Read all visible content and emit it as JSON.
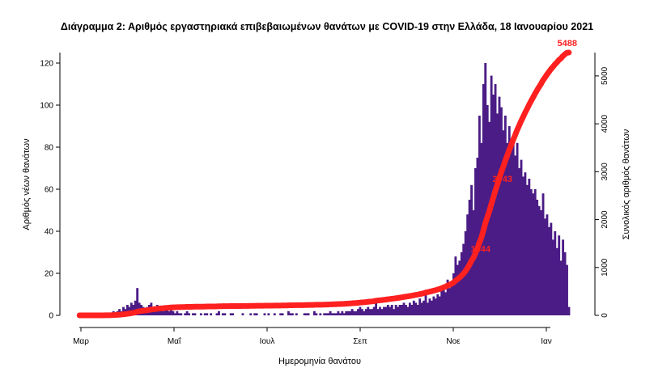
{
  "chart_data": {
    "type": "bar",
    "title": "Διάγραμμα 2: Αριθμός εργαστηριακά επιβεβαιωμένων θανάτων με COVID-19 στην Ελλάδα, 18 Ιανουαρίου 2021",
    "xlabel": "Ημερομηνία θανάτου",
    "ylabel": "Αριθμός νέων θανάτων",
    "ylabel_right": "Συνολικός αριθμός θανάτων",
    "x_ticks": [
      "Μαρ",
      "Μαΐ",
      "Ιουλ",
      "Σεπ",
      "Νοε",
      "Ιαν"
    ],
    "y_ticks": [
      0,
      20,
      40,
      60,
      80,
      100,
      120
    ],
    "y2_ticks": [
      0,
      1000,
      2000,
      3000,
      4000,
      5000
    ],
    "ylim": [
      0,
      125
    ],
    "y2lim": [
      0,
      5488
    ],
    "series": [
      {
        "name": "Αριθμός νέων θανάτων",
        "type": "bar",
        "values": [
          0,
          0,
          0,
          0,
          0,
          0,
          0,
          0,
          0,
          0,
          0,
          0,
          0,
          1,
          0,
          1,
          1,
          2,
          1,
          2,
          3,
          2,
          4,
          3,
          5,
          4,
          6,
          5,
          7,
          13,
          6,
          5,
          4,
          3,
          4,
          5,
          6,
          4,
          3,
          5,
          4,
          3,
          2,
          4,
          3,
          2,
          3,
          2,
          1,
          2,
          1,
          1,
          0,
          1,
          2,
          1,
          0,
          1,
          1,
          0,
          0,
          1,
          0,
          1,
          1,
          0,
          1,
          0,
          0,
          1,
          2,
          0,
          1,
          1,
          0,
          0,
          1,
          1,
          0,
          0,
          0,
          0,
          1,
          0,
          0,
          0,
          1,
          0,
          1,
          1,
          0,
          0,
          0,
          1,
          0,
          1,
          0,
          0,
          1,
          0,
          0,
          1,
          1,
          0,
          0,
          2,
          1,
          1,
          0,
          1,
          0,
          0,
          0,
          1,
          1,
          1,
          0,
          0,
          2,
          1,
          0,
          1,
          0,
          1,
          1,
          1,
          2,
          1,
          1,
          1,
          2,
          1,
          2,
          1,
          2,
          2,
          2,
          3,
          2,
          2,
          3,
          4,
          3,
          2,
          3,
          4,
          3,
          3,
          4,
          8,
          3,
          4,
          3,
          4,
          4,
          5,
          4,
          5,
          3,
          5,
          4,
          5,
          5,
          6,
          5,
          4,
          6,
          5,
          7,
          6,
          5,
          8,
          6,
          7,
          12,
          6,
          8,
          7,
          9,
          8,
          10,
          9,
          12,
          14,
          11,
          17,
          13,
          16,
          20,
          28,
          24,
          26,
          30,
          34,
          40,
          48,
          55,
          62,
          50,
          70,
          75,
          95,
          82,
          110,
          120,
          100,
          92,
          114,
          105,
          110,
          96,
          104,
          99,
          88,
          95,
          82,
          90,
          80,
          85,
          76,
          82,
          70,
          74,
          66,
          68,
          62,
          65,
          60,
          58,
          60,
          55,
          52,
          50,
          58,
          46,
          48,
          42,
          44,
          36,
          40,
          32,
          38,
          26,
          36,
          30,
          24,
          4
        ]
      },
      {
        "name": "Συνολικός αριθμός θανάτων",
        "type": "line",
        "labels": [
          {
            "text": "1344"
          },
          {
            "text": "2743"
          },
          {
            "text": "5488"
          }
        ]
      }
    ]
  }
}
